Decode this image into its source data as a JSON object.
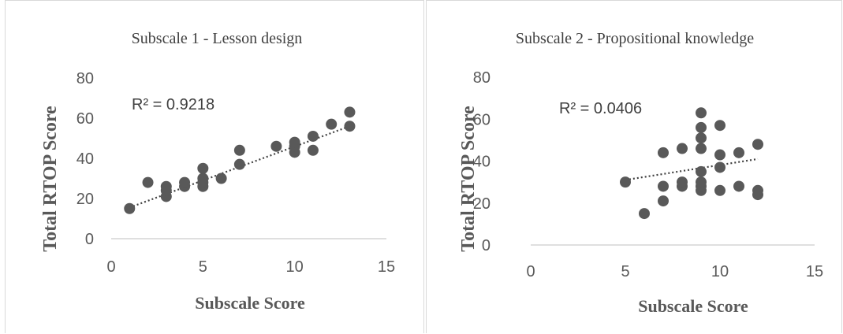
{
  "chart_data": [
    {
      "type": "scatter",
      "title": "Subscale 1 - Lesson design",
      "xlabel": "Subscale Score",
      "ylabel": "Total RTOP Score",
      "xlim": [
        0,
        15
      ],
      "ylim": [
        0,
        80
      ],
      "xticks": [
        "0",
        "5",
        "10",
        "15"
      ],
      "yticks": [
        "0",
        "20",
        "40",
        "60",
        "80"
      ],
      "annotation": "R² = 0.9218",
      "trendline": {
        "style": "dotted",
        "x": [
          1,
          13
        ],
        "y": [
          15.5,
          56
        ]
      },
      "points": [
        {
          "x": 1,
          "y": 15
        },
        {
          "x": 2,
          "y": 28
        },
        {
          "x": 3,
          "y": 21
        },
        {
          "x": 3,
          "y": 24
        },
        {
          "x": 3,
          "y": 26
        },
        {
          "x": 4,
          "y": 26
        },
        {
          "x": 4,
          "y": 28
        },
        {
          "x": 5,
          "y": 26
        },
        {
          "x": 5,
          "y": 28
        },
        {
          "x": 5,
          "y": 30
        },
        {
          "x": 5,
          "y": 35
        },
        {
          "x": 6,
          "y": 30
        },
        {
          "x": 7,
          "y": 37
        },
        {
          "x": 7,
          "y": 44
        },
        {
          "x": 9,
          "y": 46
        },
        {
          "x": 10,
          "y": 43
        },
        {
          "x": 10,
          "y": 46
        },
        {
          "x": 10,
          "y": 48
        },
        {
          "x": 11,
          "y": 44
        },
        {
          "x": 11,
          "y": 51
        },
        {
          "x": 12,
          "y": 57
        },
        {
          "x": 13,
          "y": 56
        },
        {
          "x": 13,
          "y": 63
        }
      ]
    },
    {
      "type": "scatter",
      "title": "Subscale 2 - Propositional knowledge",
      "xlabel": "Subscale Score",
      "ylabel": "Total RTOP Score",
      "xlim": [
        0,
        15
      ],
      "ylim": [
        0,
        80
      ],
      "xticks": [
        "0",
        "5",
        "10",
        "15"
      ],
      "yticks": [
        "0",
        "20",
        "40",
        "60",
        "80"
      ],
      "annotation": "R² = 0.0406",
      "trendline": {
        "style": "dotted",
        "x": [
          5,
          12
        ],
        "y": [
          31,
          41
        ]
      },
      "points": [
        {
          "x": 5,
          "y": 30
        },
        {
          "x": 6,
          "y": 15
        },
        {
          "x": 7,
          "y": 21
        },
        {
          "x": 7,
          "y": 28
        },
        {
          "x": 7,
          "y": 44
        },
        {
          "x": 8,
          "y": 28
        },
        {
          "x": 8,
          "y": 30
        },
        {
          "x": 8,
          "y": 46
        },
        {
          "x": 9,
          "y": 26
        },
        {
          "x": 9,
          "y": 28
        },
        {
          "x": 9,
          "y": 30
        },
        {
          "x": 9,
          "y": 35
        },
        {
          "x": 9,
          "y": 46
        },
        {
          "x": 9,
          "y": 51
        },
        {
          "x": 9,
          "y": 56
        },
        {
          "x": 9,
          "y": 63
        },
        {
          "x": 10,
          "y": 26
        },
        {
          "x": 10,
          "y": 37
        },
        {
          "x": 10,
          "y": 43
        },
        {
          "x": 10,
          "y": 57
        },
        {
          "x": 11,
          "y": 28
        },
        {
          "x": 11,
          "y": 44
        },
        {
          "x": 12,
          "y": 24
        },
        {
          "x": 12,
          "y": 26
        },
        {
          "x": 12,
          "y": 48
        }
      ]
    }
  ]
}
